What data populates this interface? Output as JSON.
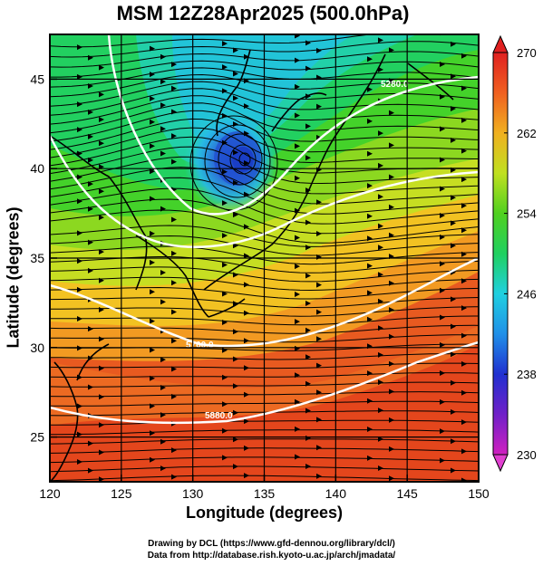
{
  "title": "MSM 12Z28Apr2025 (500.0hPa)",
  "xlabel": "Longitude (degrees)",
  "ylabel": "Latitude  (degrees)",
  "credits": {
    "line1": "Drawing by DCL (https://www.gfd-dennou.org/library/dcl/)",
    "line2": "Data from http://database.rish.kyoto-u.ac.jp/arch/jmadata/"
  },
  "chart_data": {
    "type": "heatmap",
    "xlim": [
      120,
      150
    ],
    "ylim": [
      22.5,
      47.5
    ],
    "x_ticks": [
      "120",
      "125",
      "130",
      "135",
      "140",
      "145",
      "150"
    ],
    "y_ticks": [
      "25",
      "30",
      "35",
      "40",
      "45"
    ],
    "grid": true,
    "colorbar": {
      "min": 230,
      "max": 270,
      "ticks": [
        "230",
        "238",
        "246",
        "254",
        "262",
        "270"
      ]
    },
    "contour_labels": [
      "5280.0",
      "5700.0",
      "5880.0"
    ],
    "low_center": {
      "lon": 133.5,
      "lat": 41.3
    }
  }
}
